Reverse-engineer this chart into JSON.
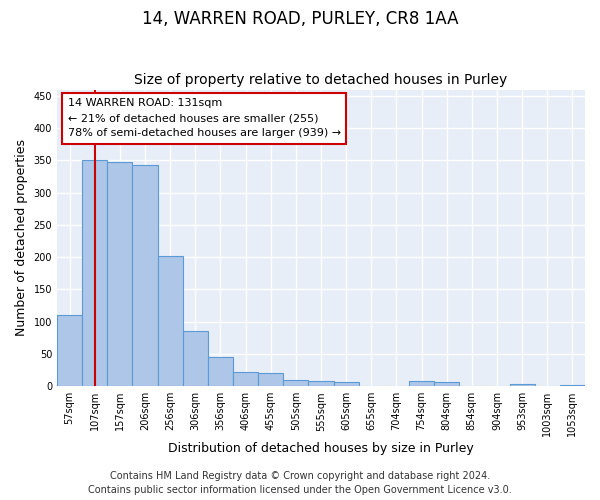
{
  "title": "14, WARREN ROAD, PURLEY, CR8 1AA",
  "subtitle": "Size of property relative to detached houses in Purley",
  "xlabel": "Distribution of detached houses by size in Purley",
  "ylabel": "Number of detached properties",
  "footer_line1": "Contains HM Land Registry data © Crown copyright and database right 2024.",
  "footer_line2": "Contains public sector information licensed under the Open Government Licence v3.0.",
  "categories": [
    "57sqm",
    "107sqm",
    "157sqm",
    "206sqm",
    "256sqm",
    "306sqm",
    "356sqm",
    "406sqm",
    "455sqm",
    "505sqm",
    "555sqm",
    "605sqm",
    "655sqm",
    "704sqm",
    "754sqm",
    "804sqm",
    "854sqm",
    "904sqm",
    "953sqm",
    "1003sqm",
    "1053sqm"
  ],
  "values": [
    110,
    350,
    348,
    343,
    202,
    85,
    46,
    22,
    20,
    10,
    8,
    6,
    0,
    0,
    8,
    6,
    0,
    0,
    3,
    0,
    2
  ],
  "bar_color": "#aec6e8",
  "bar_edge_color": "#5b9bd5",
  "annotation_text": "14 WARREN ROAD: 131sqm\n← 21% of detached houses are smaller (255)\n78% of semi-detached houses are larger (939) →",
  "annotation_box_color": "#ffffff",
  "annotation_box_edge_color": "#cc0000",
  "vline_x": 1.0,
  "vline_color": "#cc0000",
  "ylim": [
    0,
    460
  ],
  "yticks": [
    0,
    50,
    100,
    150,
    200,
    250,
    300,
    350,
    400,
    450
  ],
  "bg_color": "#ffffff",
  "plot_bg_color": "#e8eef7",
  "grid_color": "#ffffff",
  "title_fontsize": 12,
  "subtitle_fontsize": 10,
  "label_fontsize": 9,
  "tick_fontsize": 7,
  "footer_fontsize": 7,
  "annotation_fontsize": 8
}
